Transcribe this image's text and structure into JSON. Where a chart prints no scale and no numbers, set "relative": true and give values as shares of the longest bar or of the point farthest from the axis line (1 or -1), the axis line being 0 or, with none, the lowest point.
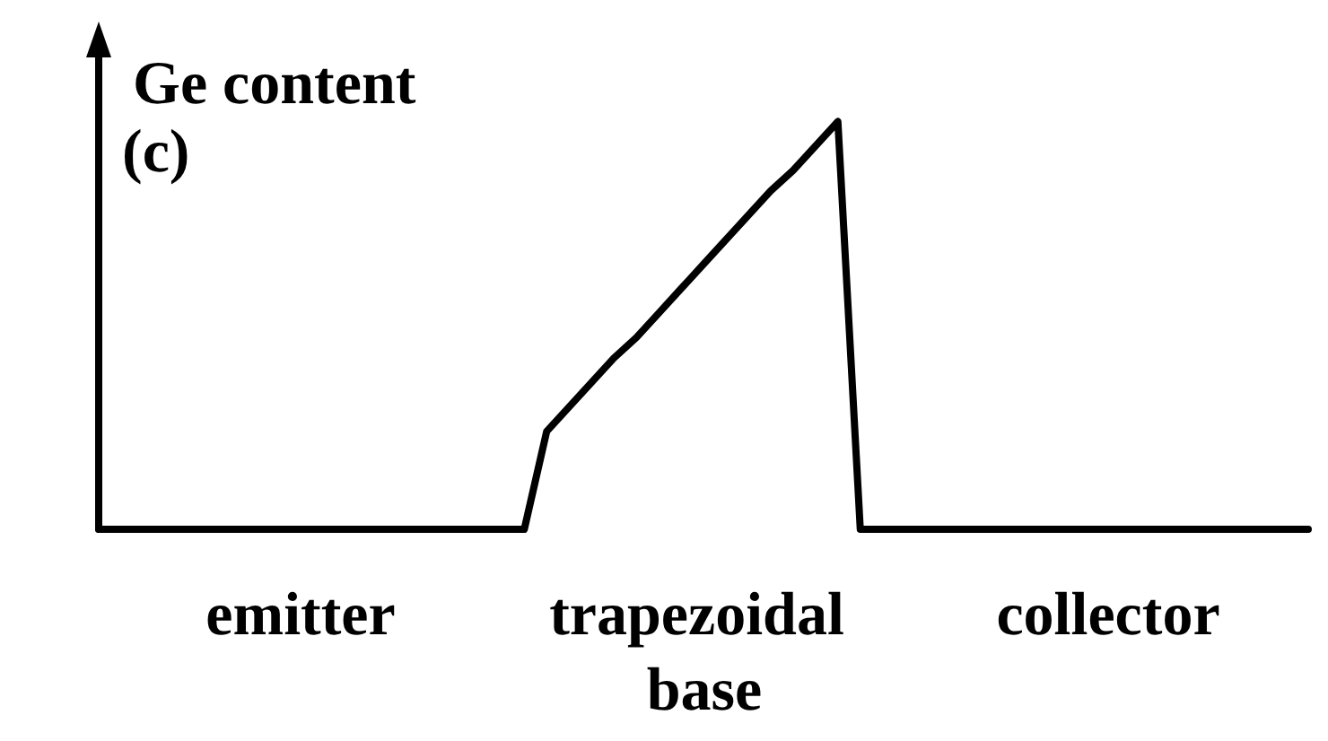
{
  "chart_data": {
    "type": "line",
    "relative": true,
    "ylabel": "Ge content",
    "title": "(c)",
    "color": "#000000",
    "marker": "none",
    "line_style": "solid",
    "grid": false,
    "categories": [
      null,
      null,
      null,
      null,
      null,
      null,
      null,
      null,
      null,
      null,
      null,
      null,
      null,
      null,
      null,
      null,
      null,
      null,
      null,
      null,
      null,
      null,
      null,
      null,
      null,
      null,
      null,
      null,
      null,
      null,
      null,
      null,
      null,
      null,
      null,
      null,
      null,
      null,
      null,
      null,
      null,
      null,
      null,
      null,
      null,
      null,
      null,
      null,
      null,
      null,
      null,
      null,
      null,
      null,
      null
    ],
    "values": [
      0,
      0,
      0,
      0,
      0,
      0,
      0,
      0,
      0,
      0,
      0,
      0,
      0,
      0,
      0,
      0,
      0,
      0,
      0,
      0,
      0.24,
      0.3,
      0.36,
      0.42,
      0.47,
      0.53,
      0.59,
      0.65,
      0.71,
      0.77,
      0.83,
      0.88,
      0.94,
      1,
      0,
      0,
      0,
      0,
      0,
      0,
      0,
      0,
      0,
      0,
      0,
      0,
      0,
      0,
      0,
      0,
      0,
      0,
      0,
      0,
      0
    ],
    "annotations": [
      "emitter",
      "trapezoidal base",
      "collector"
    ]
  }
}
